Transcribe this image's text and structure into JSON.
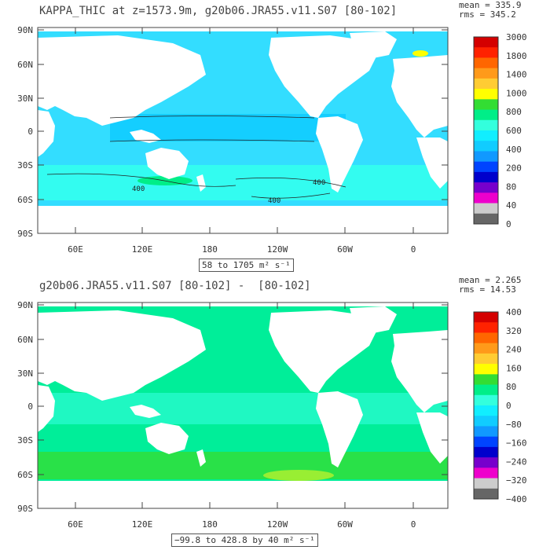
{
  "panels": [
    {
      "title": "KAPPA_THIC at z=1573.9m, g20b06.JRA55.v11.S07 [80-102]",
      "mean": "mean = 335.9",
      "rms": "rms = 345.2",
      "range_text": "58 to 1705 m² s⁻¹",
      "lat_labels": [
        "90N",
        "60N",
        "30N",
        "0",
        "30S",
        "60S",
        "90S"
      ],
      "lon_labels": [
        "60E",
        "120E",
        "180",
        "120W",
        "60W",
        "0"
      ],
      "colorbar_labels": [
        "3000",
        "1800",
        "1400",
        "1000",
        "800",
        "600",
        "400",
        "200",
        "80",
        "40",
        "0"
      ],
      "colorbar_colors": [
        "#d40000",
        "#ff2200",
        "#ff6600",
        "#ff9a1a",
        "#ffcc33",
        "#ffff00",
        "#33dd33",
        "#00ee88",
        "#33ffdd",
        "#11eeff",
        "#11ccff",
        "#1199ff",
        "#0044ff",
        "#0000cc",
        "#7700cc",
        "#ee00cc",
        "#cccccc",
        "#666666"
      ],
      "ocean_base_color": "#33ddff",
      "contour_labels": [
        "400",
        "400",
        "400"
      ]
    },
    {
      "title": "g20b06.JRA55.v11.S07 [80-102] -  [80-102]",
      "mean": "mean = 2.265",
      "rms": "rms = 14.53",
      "range_text": "−99.8 to 428.8 by 40 m² s⁻¹",
      "lat_labels": [
        "90N",
        "60N",
        "30N",
        "0",
        "30S",
        "60S",
        "90S"
      ],
      "lon_labels": [
        "60E",
        "120E",
        "180",
        "120W",
        "60W",
        "0"
      ],
      "colorbar_labels": [
        "400",
        "320",
        "240",
        "160",
        "80",
        "0",
        "−80",
        "−160",
        "−240",
        "−320",
        "−400"
      ],
      "colorbar_colors": [
        "#d40000",
        "#ff2200",
        "#ff6600",
        "#ff9a1a",
        "#ffcc33",
        "#ffff00",
        "#33dd33",
        "#00ee88",
        "#33ffdd",
        "#11eeff",
        "#11ccff",
        "#1199ff",
        "#0044ff",
        "#0000cc",
        "#7700cc",
        "#ee00cc",
        "#cccccc",
        "#666666"
      ],
      "ocean_base_color": "#00ee99"
    }
  ]
}
